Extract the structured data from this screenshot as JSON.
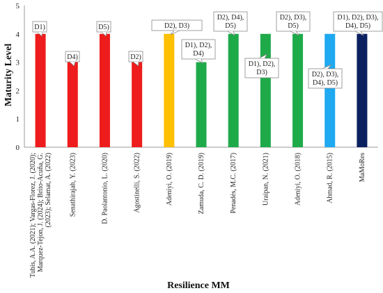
{
  "chart_data": {
    "type": "bar",
    "title": "",
    "xlabel": "Resilience MM",
    "ylabel": "Maturity Level",
    "ylim": [
      0,
      5
    ],
    "yticks": [
      0,
      1,
      2,
      3,
      4,
      5
    ],
    "grid": false,
    "legend": "none",
    "categories": [
      [
        "Tubis, A.A. (2021); Vargas-Florez, J. (2020);",
        "Marquez-Tejon, J. (2024); Brito-Acuña, G.",
        "(2023); Selamat, A. (2022)"
      ],
      [
        "Senathirajah, Y. (2023)"
      ],
      [
        "D. Paolantonio, L. (2020)"
      ],
      [
        "Agostinelli, S. (2022)"
      ],
      [
        "Adeniyi, O. (2019)"
      ],
      [
        "Zamuda, C. D. (2019)"
      ],
      [
        "Penadés, M.C. (2017)"
      ],
      [
        "Uraipan, N. (2021)"
      ],
      [
        "Adeniyi, O. (2018)"
      ],
      [
        "Ahmad, R. (2015)"
      ],
      [
        "MaMoRes"
      ]
    ],
    "values": [
      4,
      3,
      4,
      3,
      4,
      3,
      4,
      4,
      4,
      4,
      4
    ],
    "colors": [
      "#ee1c1c",
      "#ee1c1c",
      "#ee1c1c",
      "#ee1c1c",
      "#ffc000",
      "#1faa4a",
      "#1faa4a",
      "#1faa4a",
      "#1faa4a",
      "#1fa9f0",
      "#0b2060"
    ],
    "annotations": [
      [
        "D1)"
      ],
      [
        "D4)"
      ],
      [
        "D5)"
      ],
      [
        "D2)"
      ],
      [
        "D2), D3)"
      ],
      [
        "D1), D2),",
        "D4)"
      ],
      [
        "D2), D4),",
        "D5)"
      ],
      [
        "D1), D2),",
        "D3)"
      ],
      [
        "D2), D3),",
        "D5)"
      ],
      [
        "D2), D3),",
        "D4), D5)"
      ],
      [
        "D1), D2), D3),",
        "D4), D5)"
      ]
    ]
  }
}
